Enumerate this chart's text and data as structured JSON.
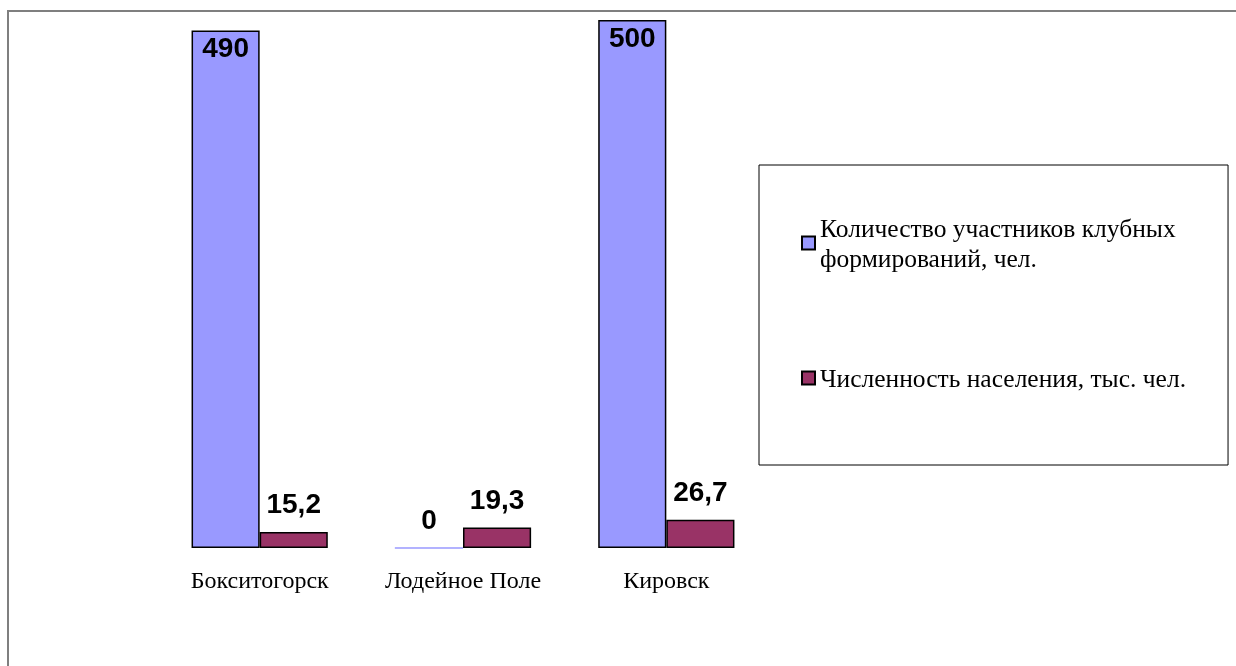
{
  "chart_data": {
    "type": "bar",
    "categories": [
      "Бокситогорск",
      "Лодейное Поле",
      "Кировск"
    ],
    "series": [
      {
        "name": "Количество участников клубных формирований, чел.",
        "color": "#9999ff",
        "values": [
          490,
          0,
          500
        ],
        "value_labels": [
          "490",
          "0",
          "500"
        ]
      },
      {
        "name": "Численность населения, тыс. чел.",
        "color": "#993366",
        "values": [
          15.2,
          19.3,
          26.7
        ],
        "value_labels": [
          "15,2",
          "19,3",
          "26,7"
        ]
      }
    ],
    "legend": "right",
    "tick_labels": "x"
  }
}
